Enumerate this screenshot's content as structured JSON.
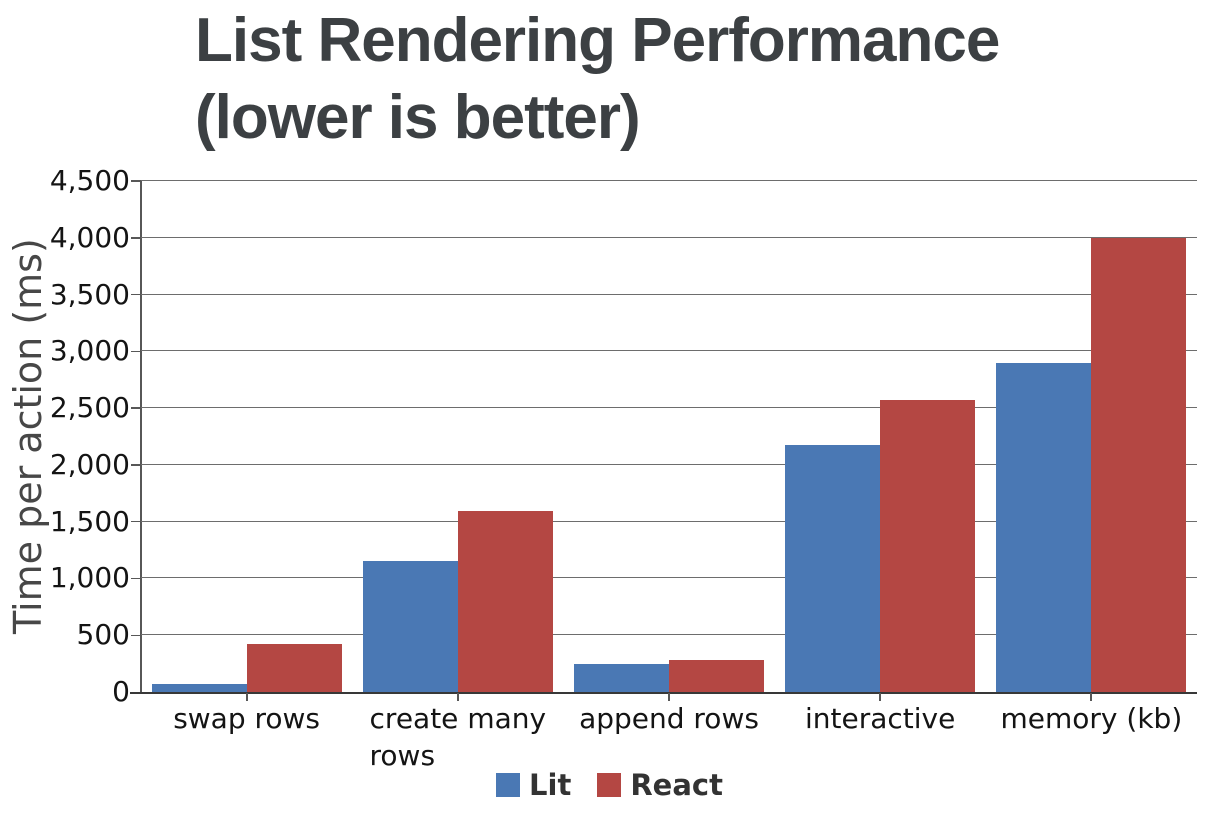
{
  "chart_data": {
    "type": "bar",
    "title": "List Rendering Performance (lower is better)",
    "title_lines": [
      "List Rendering Performance",
      "(lower is better)"
    ],
    "ylabel": "Time per action (ms)",
    "xlabel": "",
    "categories": [
      "swap rows",
      "create many\nrows",
      "append rows",
      "interactive",
      "memory (kb)"
    ],
    "series": [
      {
        "name": "Lit",
        "color": "#4a78b4",
        "values": [
          70,
          1150,
          245,
          2175,
          2900
        ]
      },
      {
        "name": "React",
        "color": "#b44743",
        "values": [
          420,
          1590,
          280,
          2575,
          4000
        ]
      }
    ],
    "ylim": [
      0,
      4500
    ],
    "ytick_step": 500,
    "ytick_labels": [
      "0",
      "500",
      "1,000",
      "1,500",
      "2,000",
      "2,500",
      "3,000",
      "3,500",
      "4,000",
      "4,500"
    ],
    "grid": true,
    "legend_position": "bottom",
    "colors": {
      "title_text": "#3c4043",
      "axis_line": "#383838",
      "gridline": "#6d6d6d",
      "tick_text": "#141414"
    }
  }
}
